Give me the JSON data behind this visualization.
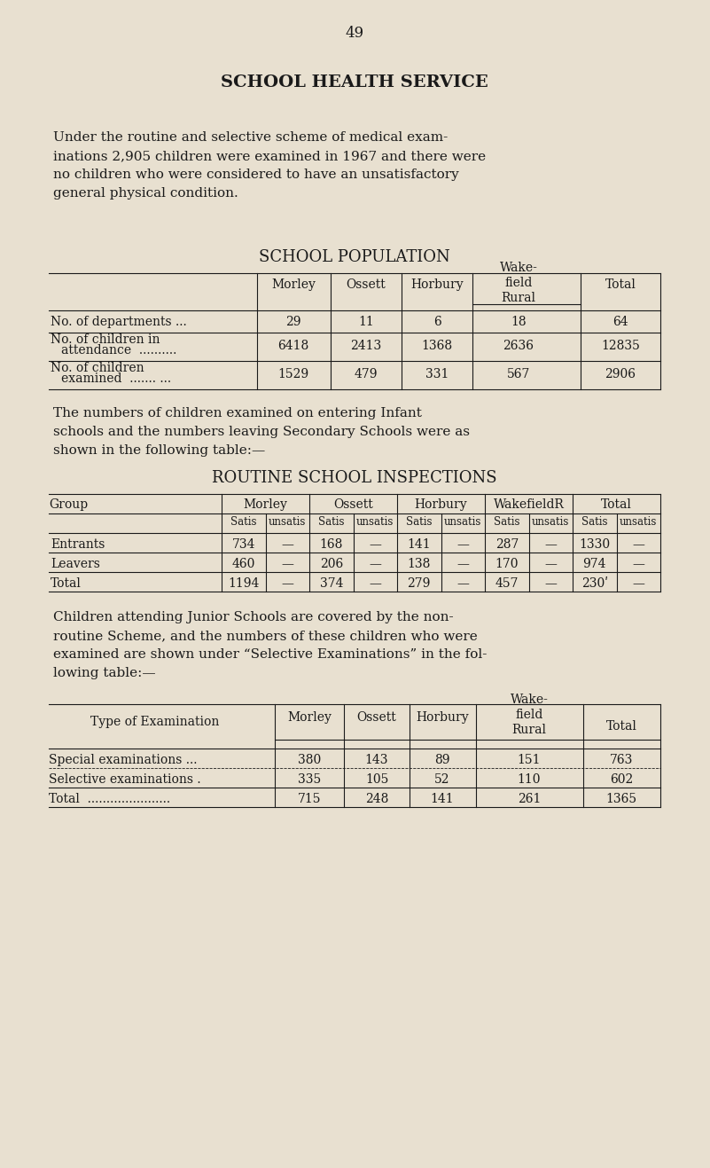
{
  "bg_color": "#e8e0d0",
  "text_color": "#1a1a1a",
  "page_number": "49",
  "main_title": "SCHOOL HEALTH SERVICE",
  "intro_text": "Under the routine and selective scheme of medical exam-\ninations 2,905 children were examined in 1967 and there were\nno children who were considered to have an unsatisfactory\ngeneral physical condition.",
  "table1_title": "SCHOOL POPULATION",
  "middle_text": "The numbers of children examined on entering Infant\nschools and the numbers leaving Secondary Schools were as\nshown in the following table:—",
  "table2_title": "ROUTINE SCHOOL INSPECTIONS",
  "table2_col_groups": [
    "Morley",
    "Ossett",
    "Horbury",
    "WakefieldR",
    "Total"
  ],
  "table2_rows": [
    [
      "Entrants",
      "734",
      "—",
      "168",
      "—",
      "141",
      "—",
      "287",
      "—",
      "1330",
      "—"
    ],
    [
      "Leavers",
      "460",
      "—",
      "206",
      "—",
      "138",
      "—",
      "170",
      "—",
      "974",
      "—"
    ],
    [
      "Total",
      "1194",
      "—",
      "374",
      "—",
      "279",
      "—",
      "457",
      "—",
      "230ʹ",
      "—"
    ]
  ],
  "lower_text": "Children attending Junior Schools are covered by the non-\nroutine Scheme, and the numbers of these children who were\nexamined are shown under “Selective Examinations” in the fol-\nlowing table:—",
  "table3_rows": [
    [
      "Special examinations ...",
      "380",
      "143",
      "89",
      "151",
      "763"
    ],
    [
      "Selective examinations .",
      "335",
      "105",
      "52",
      "110",
      "602"
    ],
    [
      "Total  ......................",
      "715",
      "248",
      "141",
      "261",
      "1365"
    ]
  ]
}
